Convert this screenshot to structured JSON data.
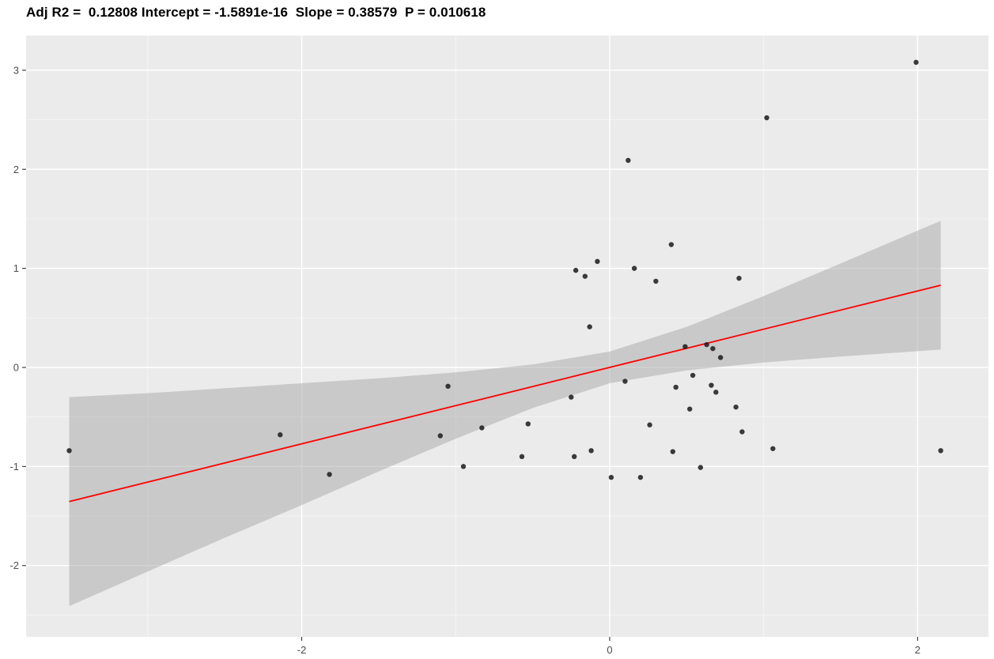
{
  "chart_data": {
    "type": "scatter",
    "title": "Adj R2 =  0.12808 Intercept = -1.5891e-16  Slope = 0.38579  P = 0.010618",
    "stats": {
      "adj_r2": 0.12808,
      "intercept": -1.5891e-16,
      "slope": 0.38579,
      "p_value": 0.010618
    },
    "xlabel": "",
    "ylabel": "",
    "xlim": [
      -3.79,
      2.46
    ],
    "ylim": [
      -2.72,
      3.35
    ],
    "x_major_ticks": [
      -2,
      0,
      2
    ],
    "x_minor_ticks": [
      -3,
      -1,
      1
    ],
    "y_major_ticks": [
      -2,
      -1,
      0,
      1,
      2,
      3
    ],
    "y_minor_ticks": [
      -2.5,
      -1.5,
      -0.5,
      0.5,
      1.5,
      2.5
    ],
    "grid": true,
    "legend": "none",
    "points": [
      [
        -3.51,
        -0.84
      ],
      [
        -2.14,
        -0.68
      ],
      [
        -1.82,
        -1.08
      ],
      [
        -1.1,
        -0.69
      ],
      [
        -1.05,
        -0.19
      ],
      [
        -0.95,
        -1.0
      ],
      [
        -0.83,
        -0.61
      ],
      [
        -0.57,
        -0.9
      ],
      [
        -0.53,
        -0.57
      ],
      [
        -0.25,
        -0.3
      ],
      [
        -0.22,
        0.98
      ],
      [
        -0.16,
        0.92
      ],
      [
        -0.08,
        1.07
      ],
      [
        -0.13,
        0.41
      ],
      [
        -0.23,
        -0.9
      ],
      [
        -0.12,
        -0.84
      ],
      [
        0.01,
        -1.11
      ],
      [
        0.12,
        2.09
      ],
      [
        0.16,
        1.0
      ],
      [
        0.1,
        -0.14
      ],
      [
        0.26,
        -0.58
      ],
      [
        0.3,
        0.87
      ],
      [
        0.4,
        1.24
      ],
      [
        0.41,
        -0.85
      ],
      [
        0.43,
        -0.2
      ],
      [
        0.49,
        0.21
      ],
      [
        0.52,
        -0.42
      ],
      [
        0.54,
        -0.08
      ],
      [
        0.59,
        -1.01
      ],
      [
        0.63,
        0.23
      ],
      [
        0.67,
        0.19
      ],
      [
        0.66,
        -0.18
      ],
      [
        0.69,
        -0.25
      ],
      [
        0.72,
        0.1
      ],
      [
        0.82,
        -0.4
      ],
      [
        0.84,
        0.9
      ],
      [
        0.86,
        -0.65
      ],
      [
        1.02,
        2.52
      ],
      [
        1.06,
        -0.82
      ],
      [
        0.2,
        -1.11
      ],
      [
        1.99,
        3.08
      ],
      [
        2.15,
        -0.84
      ]
    ],
    "regression_line": {
      "x0": -3.51,
      "x1": 2.15,
      "slope": 0.38579,
      "intercept": 0,
      "color": "#ff0000"
    },
    "ci_band": [
      {
        "x": -3.51,
        "lo": -2.41,
        "hi": -0.3
      },
      {
        "x": -3.0,
        "lo": -2.06,
        "hi": -0.26
      },
      {
        "x": -2.5,
        "lo": -1.72,
        "hi": -0.21
      },
      {
        "x": -2.0,
        "lo": -1.39,
        "hi": -0.16
      },
      {
        "x": -1.5,
        "lo": -1.05,
        "hi": -0.11
      },
      {
        "x": -1.0,
        "lo": -0.72,
        "hi": -0.05
      },
      {
        "x": -0.5,
        "lo": -0.41,
        "hi": 0.03
      },
      {
        "x": 0.0,
        "lo": -0.16,
        "hi": 0.16
      },
      {
        "x": 0.5,
        "lo": -0.03,
        "hi": 0.41
      },
      {
        "x": 1.0,
        "lo": 0.05,
        "hi": 0.72
      },
      {
        "x": 1.5,
        "lo": 0.11,
        "hi": 1.05
      },
      {
        "x": 2.15,
        "lo": 0.18,
        "hi": 1.48
      }
    ],
    "colors": {
      "panel": "#ebebeb",
      "grid": "#ffffff",
      "band": "#a8a8a8",
      "point": "#1a1a1a",
      "tick_mark": "#333333",
      "tick_label": "#4d4d4d"
    }
  }
}
